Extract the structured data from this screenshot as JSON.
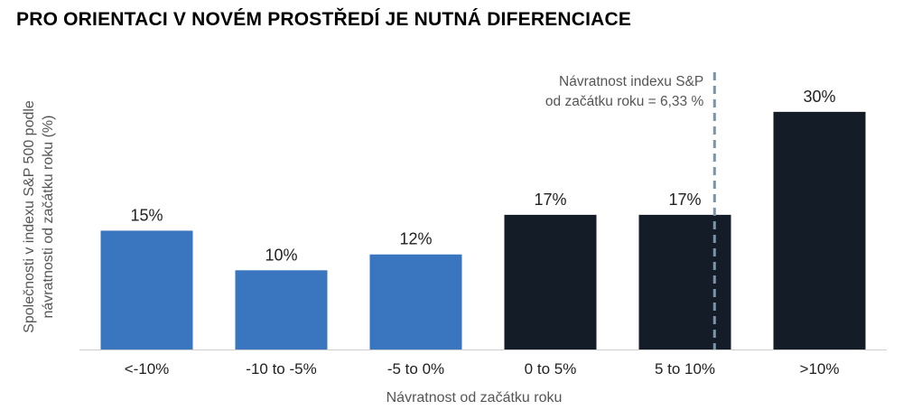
{
  "page": {
    "title": "PRO ORIENTACI V NOVÉM PROSTŘEDÍ JE NUTNÁ DIFERENCIACE"
  },
  "chart_data": {
    "type": "bar",
    "categories": [
      "<-10%",
      "-10 to -5%",
      "-5 to 0%",
      "0 to 5%",
      "5 to 10%",
      ">10%"
    ],
    "values": [
      15,
      10,
      12,
      17,
      17,
      30
    ],
    "data_labels": [
      "15%",
      "10%",
      "12%",
      "17%",
      "17%",
      "30%"
    ],
    "bar_colors": [
      "#3a75c0",
      "#3a75c0",
      "#3a75c0",
      "#141c27",
      "#141c27",
      "#141c27"
    ],
    "xlabel": "Návratnost od začátku roku",
    "ylabel_lines": [
      "Společnosti v indexu S&P 500 podle",
      "návratnosti od začátku roku (%)"
    ],
    "ylim": [
      0,
      35
    ],
    "y_axis_ticks_shown": false,
    "grid": false,
    "reference_line": {
      "position_category_index": 4.72,
      "label_lines": [
        "Návratnost indexu S&P",
        "od začátku roku = 6,33 %"
      ],
      "style": "dashed",
      "color": "#7d93a8"
    }
  }
}
